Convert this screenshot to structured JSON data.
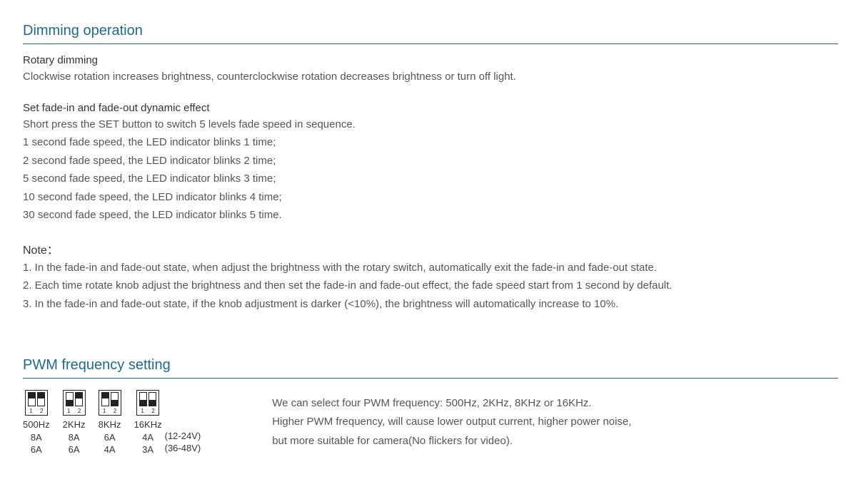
{
  "section1": {
    "title": "Dimming operation",
    "rotary": {
      "head": "Rotary dimming",
      "text": "Clockwise rotation increases brightness, counterclockwise rotation decreases brightness or turn off light."
    },
    "fade": {
      "head": "Set fade-in and fade-out dynamic effect",
      "intro": "Short press the SET button to switch 5 levels fade speed in sequence.",
      "l1": "1 second fade speed, the LED indicator blinks 1 time;",
      "l2": "2 second fade speed, the LED indicator blinks 2 time;",
      "l3": "5 second fade speed, the LED indicator blinks 3 time;",
      "l4": "10 second fade speed, the LED indicator blinks 4 time;",
      "l5": "30 second fade speed, the LED indicator blinks 5 time."
    },
    "note": {
      "head": "Note：",
      "n1": "1. In the fade-in and fade-out state, when adjust the brightness with the rotary switch, automatically exit the fade-in and fade-out state.",
      "n2": "2. Each time rotate knob adjust the brightness and then set the fade-in and fade-out effect, the fade speed start from 1 second by default.",
      "n3": "3. In the fade-in and fade-out state, if the knob adjustment is darker (<10%), the brightness will automatically increase to 10%."
    }
  },
  "section2": {
    "title": "PWM frequency setting",
    "switches": [
      {
        "freq": "500Hz",
        "a1": "8A",
        "a2": "6A",
        "pos": [
          "up",
          "up"
        ]
      },
      {
        "freq": "2KHz",
        "a1": "8A",
        "a2": "6A",
        "pos": [
          "down",
          "up"
        ]
      },
      {
        "freq": "8KHz",
        "a1": "6A",
        "a2": "4A",
        "pos": [
          "up",
          "down"
        ]
      },
      {
        "freq": "16KHz",
        "a1": "4A",
        "a2": "3A",
        "pos": [
          "down",
          "down"
        ]
      }
    ],
    "volt1": "(12-24V)",
    "volt2": "(36-48V)",
    "desc": {
      "l1": "We can select four PWM frequency: 500Hz, 2KHz, 8KHz or 16KHz.",
      "l2": "Higher PWM frequency, will cause lower output current, higher power noise,",
      "l3": "but more suitable for camera(No flickers for video)."
    }
  }
}
